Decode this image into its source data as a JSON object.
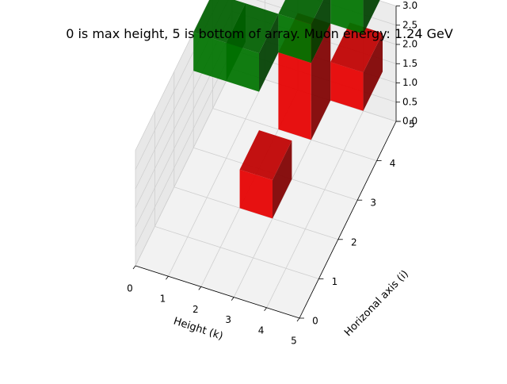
{
  "chart_data": {
    "type": "bar3d",
    "title": "0 is max height, 5 is bottom of array. Muon energy: 1.24 GeV",
    "xlabel": "Height (k)",
    "ylabel": "Horizonal axis (i)",
    "zlabel": "",
    "xlim": [
      0,
      5
    ],
    "ylim": [
      0,
      5
    ],
    "zlim": [
      0,
      3
    ],
    "x_ticks": [
      "0",
      "1",
      "2",
      "3",
      "4",
      "5"
    ],
    "y_ticks": [
      "0",
      "1",
      "2",
      "3",
      "4",
      "5"
    ],
    "z_ticks": [
      "0.0",
      "0.5",
      "1.0",
      "1.5",
      "2.0",
      "2.5",
      "3.0"
    ],
    "grid": true,
    "colors": {
      "red": "#ff0000",
      "green": "#008000"
    },
    "bars": [
      {
        "x": 0,
        "y": 3,
        "z0": 2,
        "dz": 1,
        "color": "green"
      },
      {
        "x": 1,
        "y": 3,
        "z0": 2,
        "dz": 1,
        "color": "green"
      },
      {
        "x": 2,
        "y": 2,
        "z0": 0,
        "dz": 1,
        "color": "red"
      },
      {
        "x": 2,
        "y": 4,
        "z0": 0,
        "dz": 2,
        "color": "red"
      },
      {
        "x": 2,
        "y": 4,
        "z0": 2,
        "dz": 1,
        "color": "green"
      },
      {
        "x": 3,
        "y": 5,
        "z0": 0,
        "dz": 1,
        "color": "red"
      },
      {
        "x": 3,
        "y": 5,
        "z0": 2,
        "dz": 1,
        "color": "green"
      }
    ]
  }
}
